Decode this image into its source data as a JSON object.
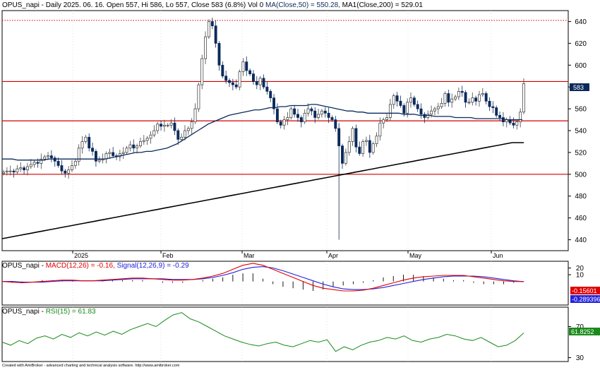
{
  "colors": {
    "up": "#000000",
    "down": "#0b2a5c",
    "ma50": "#0b2a5c",
    "ma200": "#000000",
    "hline": "#d00000",
    "dotted": "#d00000",
    "macd": "#e00000",
    "signal": "#2222dd",
    "rsi": "#1a8a1a",
    "price_tag_bg": "#0b2a5c",
    "macd_tag_bg": "#e00000",
    "signal_tag_bg": "#2222dd",
    "rsi_tag_bg": "#1a8a1a"
  },
  "price_panel": {
    "title": {
      "prefix": "OPUS_napi - Daily 2025. 06. 16. Open 557, Hi 586, Lo 557, Close 583 (6.8%) Vol 0 ",
      "ma50": "MA(Close,50) = 550.28,",
      "ma200": " MA1(Close,200) = 529.01"
    },
    "last_price_label": "583"
  },
  "macd_panel": {
    "title": {
      "prefix": "OPUS_napi - ",
      "macd": "MACD(12,26) = -0.16,",
      "signal": " Signal(12,26,9) = -0.29"
    },
    "macd_tag": "-0.15601",
    "signal_tag": "-0.289396"
  },
  "rsi_panel": {
    "title": {
      "prefix": "OPUS_napi - ",
      "rsi": "RSI(15) = 61.83"
    },
    "rsi_tag": "61.8252"
  },
  "footer": "Created with AmiBroker - advanced charting and technical analysis software. http://www.amibroker.com",
  "chart_data": [
    {
      "type": "candlestick",
      "title": "OPUS_napi - Daily 2025. 06. 16. Open 557, Hi 586, Lo 557, Close 583 (6.8%) Vol 0",
      "x_tick_labels": [
        "2025",
        "Feb",
        "Mar",
        "Apr",
        "May",
        "Jun"
      ],
      "ylim": [
        430,
        650
      ],
      "y_ticks": [
        440,
        460,
        480,
        500,
        520,
        540,
        560,
        580,
        600,
        620,
        640
      ],
      "horizontal_lines": [
        500,
        549,
        585
      ],
      "dotted_line": 641,
      "close": [
        502,
        503,
        503,
        502,
        505,
        506,
        504,
        507,
        509,
        511,
        510,
        514,
        516,
        517,
        515,
        512,
        508,
        503,
        501,
        504,
        508,
        512,
        524,
        530,
        534,
        524,
        521,
        512,
        513,
        514,
        519,
        520,
        517,
        516,
        519,
        520,
        524,
        527,
        524,
        526,
        530,
        531,
        533,
        536,
        540,
        546,
        544,
        545,
        545,
        547,
        540,
        532,
        534,
        540,
        542,
        548,
        560,
        582,
        606,
        626,
        640,
        636,
        620,
        600,
        590,
        586,
        584,
        582,
        580,
        594,
        603,
        595,
        592,
        585,
        582,
        588,
        580,
        576,
        570,
        560,
        548,
        545,
        550,
        552,
        560,
        555,
        552,
        548,
        556,
        560,
        558,
        552,
        555,
        558,
        556,
        552,
        550,
        542,
        526,
        510,
        520,
        530,
        542,
        525,
        519,
        530,
        531,
        520,
        528,
        535,
        547,
        550,
        552,
        564,
        572,
        567,
        563,
        556,
        566,
        570,
        564,
        560,
        555,
        552,
        555,
        558,
        560,
        562,
        565,
        574,
        566,
        569,
        571,
        576,
        575,
        566,
        566,
        570,
        567,
        573,
        574,
        567,
        562,
        561,
        554,
        552,
        548,
        550,
        547,
        545,
        548,
        557,
        583
      ],
      "ma50": [
        514,
        514,
        514,
        513,
        513,
        513,
        513,
        513,
        513,
        514,
        514,
        514,
        514,
        514,
        514,
        514,
        514,
        514,
        514,
        514,
        514,
        515,
        516,
        517,
        518,
        519,
        520,
        520,
        521,
        521,
        522,
        523,
        524,
        526,
        528,
        531,
        534,
        537,
        540,
        543,
        546,
        548,
        550,
        552,
        554,
        555,
        556,
        557,
        558,
        559,
        559,
        560,
        561,
        561,
        562,
        562,
        563,
        563,
        563,
        563,
        564,
        564,
        563,
        562,
        561,
        560,
        559,
        558,
        558,
        557,
        557,
        556,
        556,
        556,
        556,
        556,
        556,
        556,
        555,
        555,
        555,
        554,
        554,
        554,
        553,
        553,
        553,
        553,
        552,
        552,
        552,
        552,
        551,
        551,
        551,
        551,
        551,
        551,
        550,
        550,
        550,
        550
      ],
      "ma200": [
        441,
        442,
        443,
        444,
        445,
        446,
        447,
        448,
        449,
        450,
        451,
        452,
        453,
        454,
        455,
        456,
        457,
        458,
        459,
        460,
        461,
        462,
        463,
        464,
        465,
        466,
        467,
        468,
        469,
        470,
        471,
        472,
        473,
        474,
        475,
        476,
        477,
        478,
        479,
        480,
        481,
        482,
        483,
        484,
        485,
        486,
        487,
        488,
        489,
        490,
        491,
        492,
        493,
        494,
        495,
        496,
        497,
        498,
        499,
        500,
        501,
        502,
        503,
        504,
        505,
        506,
        507,
        508,
        509,
        510,
        511,
        512,
        513,
        514,
        515,
        516,
        517,
        518,
        519,
        520,
        521,
        522,
        523,
        524,
        525,
        526,
        527,
        528,
        529,
        529,
        529
      ]
    },
    {
      "type": "line",
      "title": "MACD(12,26) = -0.16, Signal(12,26,9) = -0.29",
      "ylim": [
        -35,
        30
      ],
      "y_ticks": [
        10,
        20
      ],
      "series": [
        {
          "name": "MACD(12,26)",
          "values": [
            0,
            -1,
            -2,
            -1,
            0,
            1,
            2,
            2,
            1,
            1,
            2,
            3,
            4,
            5,
            5,
            4,
            3,
            2,
            2,
            3,
            5,
            8,
            12,
            18,
            24,
            27,
            24,
            18,
            12,
            6,
            0,
            -6,
            -10,
            -12,
            -14,
            -14,
            -13,
            -10,
            -6,
            -2,
            2,
            5,
            7,
            8,
            9,
            9,
            9,
            7,
            5,
            3,
            1,
            0,
            -0.16
          ]
        },
        {
          "name": "Signal(12,26,9)",
          "values": [
            0,
            0,
            -1,
            -1,
            -1,
            0,
            1,
            1,
            1,
            1,
            1,
            2,
            3,
            4,
            4,
            4,
            4,
            3,
            3,
            3,
            4,
            6,
            9,
            13,
            18,
            21,
            22,
            20,
            16,
            11,
            6,
            1,
            -4,
            -8,
            -11,
            -12,
            -12,
            -11,
            -9,
            -6,
            -3,
            0,
            3,
            5,
            7,
            8,
            8,
            8,
            7,
            5,
            3,
            1,
            -0.29
          ]
        }
      ]
    },
    {
      "type": "line",
      "title": "RSI(15) = 61.83",
      "ylim": [
        25,
        95
      ],
      "y_ticks": [
        30,
        70
      ],
      "series": [
        {
          "name": "RSI(15)",
          "values": [
            50,
            46,
            52,
            48,
            55,
            58,
            54,
            60,
            56,
            62,
            58,
            63,
            59,
            64,
            60,
            66,
            70,
            74,
            70,
            78,
            85,
            88,
            80,
            76,
            70,
            64,
            58,
            54,
            50,
            47,
            45,
            48,
            50,
            46,
            44,
            48,
            52,
            50,
            53,
            38,
            44,
            40,
            46,
            50,
            52,
            56,
            54,
            58,
            52,
            50,
            54,
            56,
            60,
            58,
            54,
            52,
            56,
            50,
            44,
            46,
            52,
            61.83
          ]
        }
      ]
    }
  ]
}
